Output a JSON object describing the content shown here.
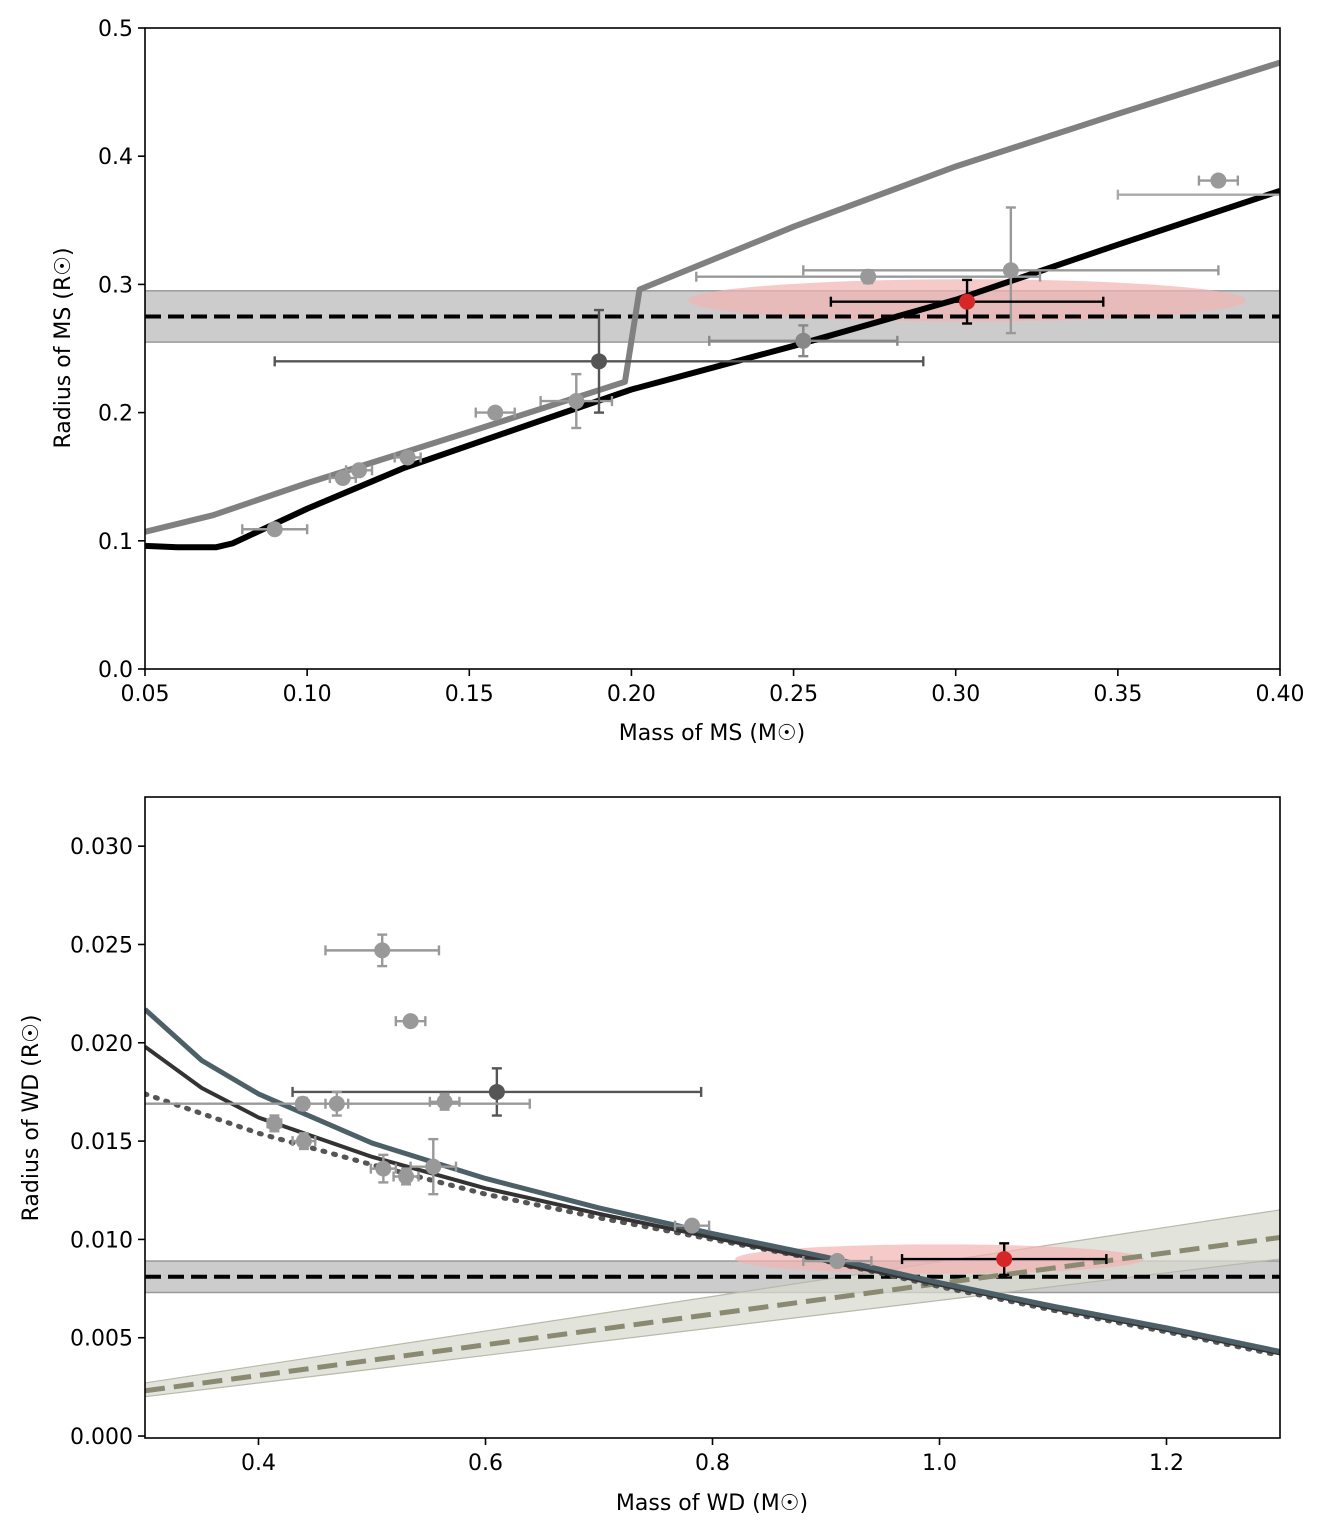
{
  "chart_data": [
    {
      "type": "line",
      "xlabel": "Mass of MS (M☉)",
      "ylabel": "Radius of MS (R☉)",
      "xlim": [
        0.05,
        0.4
      ],
      "ylim": [
        0.0,
        0.5
      ],
      "xticks": [
        0.05,
        0.1,
        0.15,
        0.2,
        0.25,
        0.3,
        0.35,
        0.4
      ],
      "xtick_labels": [
        "0.05",
        "0.10",
        "0.15",
        "0.20",
        "0.25",
        "0.30",
        "0.35",
        "0.40"
      ],
      "yticks": [
        0.0,
        0.1,
        0.2,
        0.3,
        0.4,
        0.5
      ],
      "ytick_labels": [
        "0.0",
        "0.1",
        "0.2",
        "0.3",
        "0.4",
        "0.5"
      ],
      "band": {
        "ymin": 0.255,
        "ymax": 0.295,
        "color": "#cccccc"
      },
      "hline": {
        "y": 0.275,
        "style": "dashed",
        "color": "#000000"
      },
      "ellipse": {
        "cx": 0.3035,
        "cy": 0.2875,
        "rx": 0.086,
        "ry": 0.0165,
        "color": "#f4b4b4"
      },
      "series": [
        {
          "style": "solid",
          "color": "#808080",
          "width": 6,
          "points": [
            [
              0.05,
              0.107
            ],
            [
              0.071,
              0.12
            ],
            [
              0.1,
              0.145
            ],
            [
              0.15,
              0.185
            ],
            [
              0.198,
              0.224
            ],
            [
              0.2025,
              0.296
            ],
            [
              0.25,
              0.345
            ],
            [
              0.3,
              0.392
            ],
            [
              0.35,
              0.433
            ],
            [
              0.4,
              0.473
            ]
          ]
        },
        {
          "style": "solid",
          "color": "#000000",
          "width": 6,
          "points": [
            [
              0.05,
              0.096
            ],
            [
              0.06,
              0.095
            ],
            [
              0.072,
              0.095
            ],
            [
              0.077,
              0.098
            ],
            [
              0.1,
              0.125
            ],
            [
              0.13,
              0.157
            ],
            [
              0.17,
              0.192
            ],
            [
              0.2,
              0.218
            ],
            [
              0.25,
              0.252
            ],
            [
              0.3,
              0.288
            ],
            [
              0.35,
              0.331
            ],
            [
              0.4,
              0.373
            ]
          ]
        }
      ],
      "points": [
        {
          "x": 0.09,
          "y": 0.109,
          "xerr": 0.01,
          "yerr": 0.003,
          "color": "#999999"
        },
        {
          "x": 0.111,
          "y": 0.149,
          "xerr": 0.004,
          "yerr": 0.004,
          "color": "#999999"
        },
        {
          "x": 0.116,
          "y": 0.155,
          "xerr": 0.004,
          "yerr": 0.004,
          "color": "#999999"
        },
        {
          "x": 0.131,
          "y": 0.165,
          "xerr": 0.004,
          "yerr": 0.004,
          "color": "#999999"
        },
        {
          "x": 0.158,
          "y": 0.2,
          "xerr": 0.006,
          "yerr": 0.004,
          "color": "#999999"
        },
        {
          "x": 0.183,
          "y": 0.209,
          "xerr": 0.011,
          "yerr": 0.021,
          "color": "#999999"
        },
        {
          "x": 0.19,
          "y": 0.24,
          "xerr": 0.1,
          "yerr": 0.04,
          "color": "#555555"
        },
        {
          "x": 0.253,
          "y": 0.256,
          "xerr": 0.029,
          "yerr": 0.012,
          "color": "#888888"
        },
        {
          "x": 0.273,
          "y": 0.306,
          "xerr": 0.053,
          "yerr": 0.005,
          "color": "#999999"
        },
        {
          "x": 0.317,
          "y": 0.311,
          "xerr": 0.064,
          "yerr": 0.049,
          "color": "#999999"
        },
        {
          "x": 0.381,
          "y": 0.381,
          "xerr": 0.006,
          "yerr": 0.003,
          "color": "#999999"
        },
        {
          "x": 0.381,
          "y": 0.37,
          "xerr": 0.031,
          "yerr": 0,
          "color": "#aaaaaa",
          "nomarker": true
        },
        {
          "x": 0.3035,
          "y": 0.2865,
          "xerr": 0.042,
          "yerr": 0.017,
          "color": "#d62728",
          "ecolor": "#000000"
        }
      ]
    },
    {
      "type": "line",
      "xlabel": "Mass of WD (M☉)",
      "ylabel": "Radius of WD (R☉)",
      "xlim": [
        0.3,
        1.3
      ],
      "ylim": [
        -0.0001,
        0.0325
      ],
      "xticks": [
        0.4,
        0.6,
        0.8,
        1.0,
        1.2
      ],
      "xtick_labels": [
        "0.4",
        "0.6",
        "0.8",
        "1.0",
        "1.2"
      ],
      "yticks": [
        0.0,
        0.005,
        0.01,
        0.015,
        0.02,
        0.025,
        0.03
      ],
      "ytick_labels": [
        "0.000",
        "0.005",
        "0.010",
        "0.015",
        "0.020",
        "0.025",
        "0.030"
      ],
      "band": {
        "ymin": 0.0073,
        "ymax": 0.0089,
        "color": "#cccccc"
      },
      "hline": {
        "y": 0.0081,
        "style": "dashed",
        "color": "#000000"
      },
      "slant_band": {
        "x": [
          0.3,
          1.3
        ],
        "ylow": [
          0.002,
          0.009
        ],
        "yhigh": [
          0.0027,
          0.0115
        ],
        "color": "#d8d9cf"
      },
      "ellipse": {
        "cx": 1.0,
        "cy": 0.009,
        "rx": 0.18,
        "ry": 0.00075,
        "color": "#f4b4b4"
      },
      "series": [
        {
          "style": "dashed",
          "color": "#8a8a72",
          "width": 5,
          "points": [
            [
              0.3,
              0.0023
            ],
            [
              1.3,
              0.0101
            ]
          ]
        },
        {
          "style": "dotted",
          "color": "#555555",
          "width": 5,
          "points": [
            [
              0.3,
              0.0174
            ],
            [
              0.35,
              0.0164
            ],
            [
              0.4,
              0.0154
            ],
            [
              0.5,
              0.0138
            ],
            [
              0.6,
              0.0123
            ],
            [
              0.7,
              0.0111
            ],
            [
              0.8,
              0.01
            ],
            [
              0.9,
              0.0089
            ],
            [
              1.0,
              0.0076
            ],
            [
              1.1,
              0.0064
            ],
            [
              1.2,
              0.0053
            ],
            [
              1.3,
              0.0041
            ]
          ]
        },
        {
          "style": "solid",
          "color": "#333333",
          "width": 4,
          "points": [
            [
              0.3,
              0.0198
            ],
            [
              0.35,
              0.0177
            ],
            [
              0.4,
              0.0162
            ],
            [
              0.5,
              0.0142
            ],
            [
              0.6,
              0.0126
            ],
            [
              0.7,
              0.0113
            ],
            [
              0.8,
              0.0101
            ],
            [
              0.9,
              0.0089
            ],
            [
              1.0,
              0.0077
            ],
            [
              1.1,
              0.0065
            ],
            [
              1.2,
              0.0054
            ],
            [
              1.3,
              0.0042
            ]
          ]
        },
        {
          "style": "solid",
          "color": "#4d6068",
          "width": 5,
          "points": [
            [
              0.3,
              0.0217
            ],
            [
              0.35,
              0.0191
            ],
            [
              0.4,
              0.0174
            ],
            [
              0.5,
              0.0149
            ],
            [
              0.6,
              0.0131
            ],
            [
              0.7,
              0.0116
            ],
            [
              0.8,
              0.0103
            ],
            [
              0.9,
              0.0091
            ],
            [
              1.0,
              0.0078
            ],
            [
              1.1,
              0.0066
            ],
            [
              1.2,
              0.0055
            ],
            [
              1.3,
              0.0043
            ]
          ]
        }
      ],
      "points": [
        {
          "x": 0.509,
          "y": 0.0247,
          "xerr": 0.05,
          "yerr": 0.0008,
          "color": "#999999"
        },
        {
          "x": 0.534,
          "y": 0.0211,
          "xerr": 0.013,
          "yerr": 0.0002,
          "color": "#999999"
        },
        {
          "x": 0.61,
          "y": 0.0175,
          "xerr": 0.18,
          "yerr": 0.0012,
          "color": "#555555"
        },
        {
          "x": 0.439,
          "y": 0.0169,
          "xerr": 0.2,
          "yerr": 0.0003,
          "color": "#999999"
        },
        {
          "x": 0.469,
          "y": 0.0169,
          "xerr": 0.01,
          "yerr": 0.0006,
          "color": "#999999"
        },
        {
          "x": 0.564,
          "y": 0.017,
          "xerr": 0.013,
          "yerr": 0.0004,
          "color": "#999999"
        },
        {
          "x": 0.414,
          "y": 0.0159,
          "xerr": 0.006,
          "yerr": 0.0004,
          "color": "#999999"
        },
        {
          "x": 0.44,
          "y": 0.015,
          "xerr": 0.01,
          "yerr": 0.0004,
          "color": "#999999"
        },
        {
          "x": 0.51,
          "y": 0.0136,
          "xerr": 0.011,
          "yerr": 0.0007,
          "color": "#999999"
        },
        {
          "x": 0.53,
          "y": 0.0132,
          "xerr": 0.011,
          "yerr": 0.0004,
          "color": "#999999"
        },
        {
          "x": 0.554,
          "y": 0.0137,
          "xerr": 0.02,
          "yerr": 0.0014,
          "color": "#999999"
        },
        {
          "x": 0.782,
          "y": 0.0107,
          "xerr": 0.015,
          "yerr": 0.0002,
          "color": "#999999"
        },
        {
          "x": 0.91,
          "y": 0.0089,
          "xerr": 0.03,
          "yerr": 0.0002,
          "color": "#999999"
        },
        {
          "x": 1.057,
          "y": 0.009,
          "xerr": 0.09,
          "yerr": 0.0008,
          "color": "#d62728",
          "ecolor": "#000000"
        }
      ]
    }
  ]
}
